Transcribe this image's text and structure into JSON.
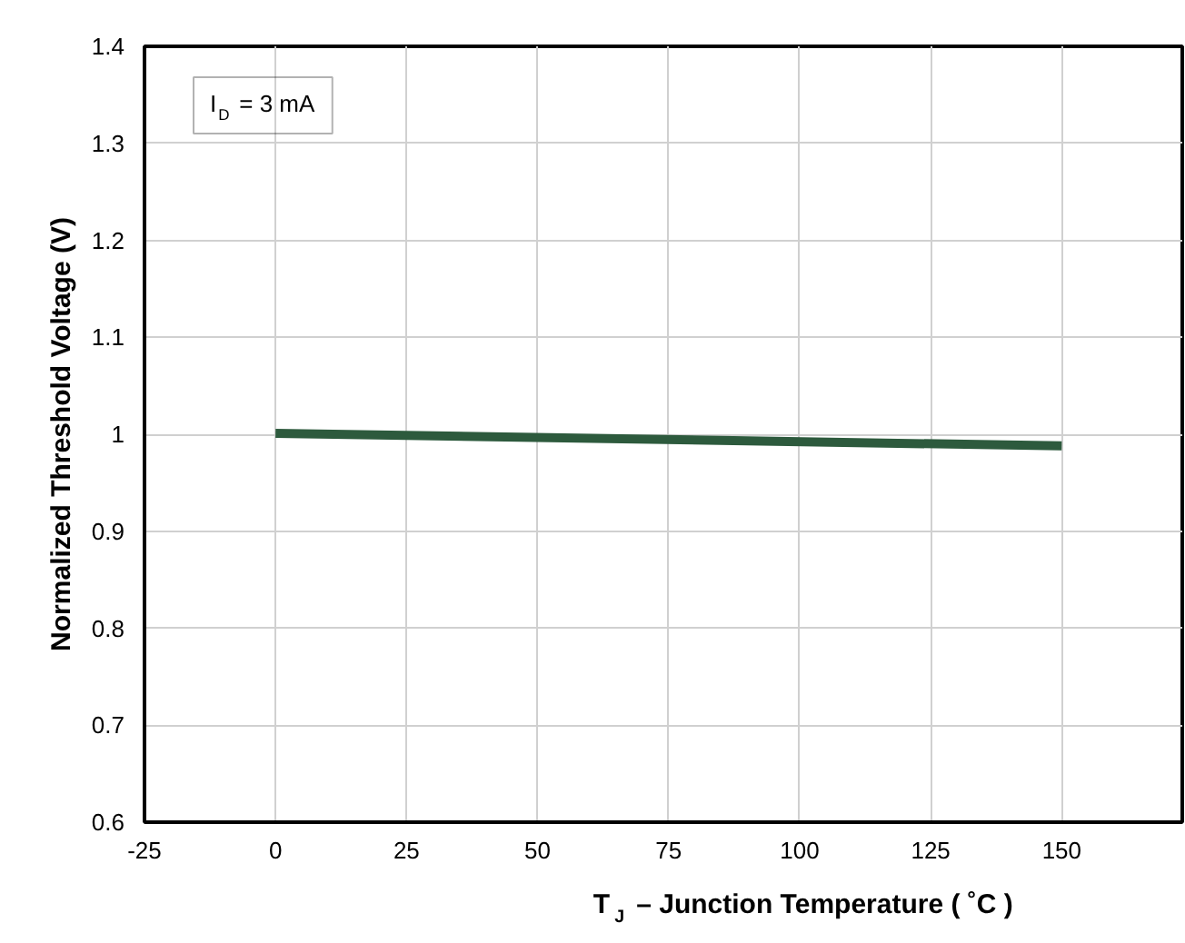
{
  "chart_data": {
    "type": "line",
    "xlabel": "T$_{J}$ – Junction Temperature ( ˚C )",
    "ylabel": "Normalized Threshold Voltage (V)",
    "annotations": [
      "I$_{D}$ = 3 mA"
    ],
    "x": [
      0,
      150
    ],
    "series": [
      {
        "color": "#2d5a3d",
        "values": [
          1.001,
          0.988
        ]
      }
    ],
    "xlim": [
      -25,
      173
    ],
    "xticks": [
      -25,
      0,
      25,
      50,
      75,
      100,
      125,
      150
    ],
    "ylim": [
      0.6,
      1.4
    ],
    "yticks": [
      0.6,
      0.7,
      0.8,
      0.9,
      1,
      1.1,
      1.2,
      1.3,
      1.4
    ],
    "grid": true,
    "marker": "none",
    "line_style": "solid"
  }
}
